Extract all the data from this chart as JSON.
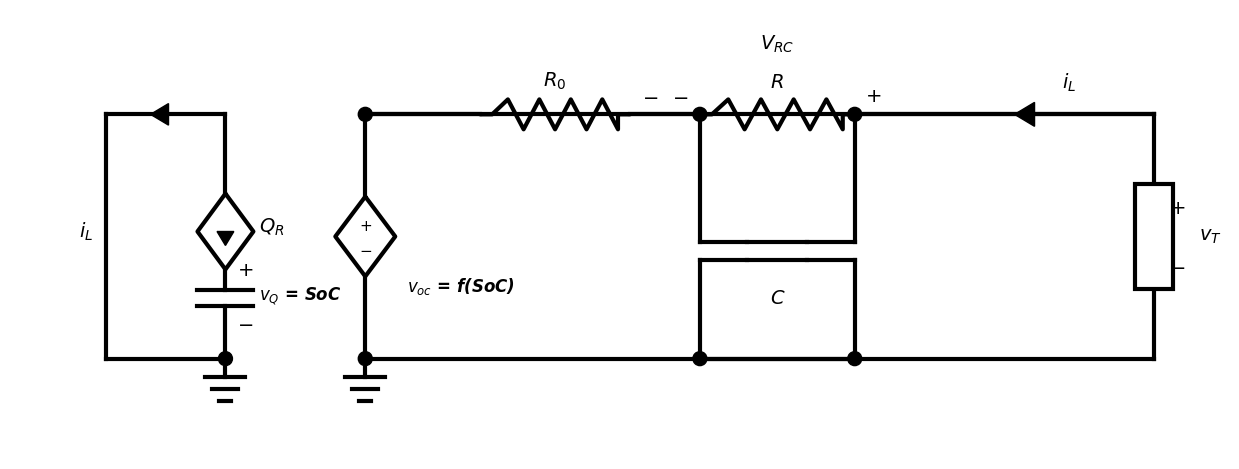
{
  "bg_color": "#ffffff",
  "line_color": "#000000",
  "line_width": 3.0,
  "fig_width": 12.39,
  "fig_height": 4.69
}
